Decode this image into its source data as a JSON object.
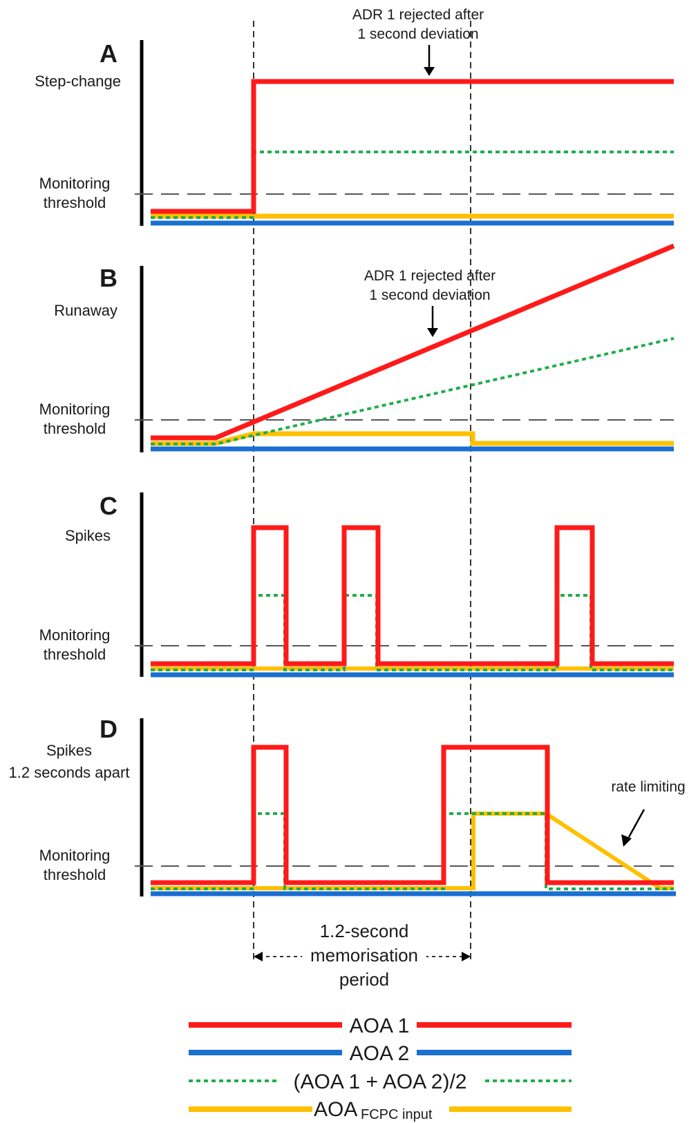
{
  "colors": {
    "aoa1": "#ff1a1a",
    "aoa2": "#1a6fd1",
    "average": "#1fad4b",
    "fcpc": "#ffc000",
    "axis": "#000000",
    "threshold": "#555555",
    "guide": "#333333"
  },
  "panels": [
    {
      "id": "A",
      "letter": "A",
      "label_lines": [
        "Step-change"
      ],
      "threshold_label": [
        "Monitoring",
        "threshold"
      ],
      "annotation": [
        "ADR 1 rejected after",
        "1 second deviation"
      ]
    },
    {
      "id": "B",
      "letter": "B",
      "label_lines": [
        "Runaway"
      ],
      "threshold_label": [
        "Monitoring",
        "threshold"
      ],
      "annotation": [
        "ADR 1 rejected after",
        "1 second deviation"
      ]
    },
    {
      "id": "C",
      "letter": "C",
      "label_lines": [
        "Spikes"
      ],
      "threshold_label": [
        "Monitoring",
        "threshold"
      ],
      "annotation": []
    },
    {
      "id": "D",
      "letter": "D",
      "label_lines": [
        "Spikes",
        "1.2 seconds apart"
      ],
      "threshold_label": [
        "Monitoring",
        "threshold"
      ],
      "annotation": [
        "rate limiting"
      ]
    }
  ],
  "memorisation": [
    "1.2-second",
    "memorisation",
    "period"
  ],
  "legend": [
    {
      "key": "aoa1",
      "label": "AOA 1",
      "sub": "",
      "style": "solid"
    },
    {
      "key": "aoa2",
      "label": "AOA 2",
      "sub": "",
      "style": "solid"
    },
    {
      "key": "average",
      "label": "(AOA 1 + AOA 2)/2",
      "sub": "",
      "style": "dotted"
    },
    {
      "key": "fcpc",
      "label": "AOA",
      "sub": "FCPC input",
      "style": "solid"
    }
  ]
}
